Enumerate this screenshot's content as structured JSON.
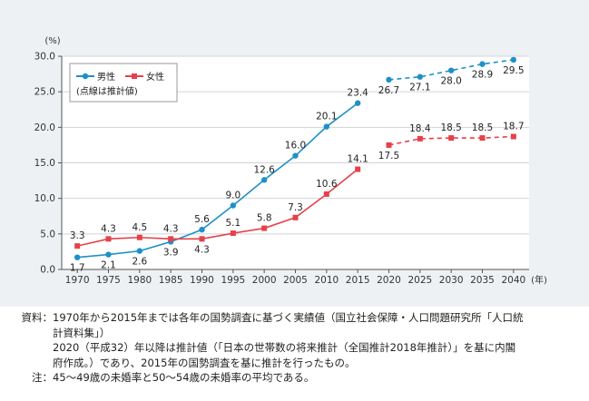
{
  "chart_data": {
    "type": "line",
    "y_unit": "(%)",
    "x_unit": "(年)",
    "ylim": [
      0,
      30
    ],
    "y_ticks": [
      "0.0",
      "5.0",
      "10.0",
      "15.0",
      "20.0",
      "25.0",
      "30.0"
    ],
    "categories": [
      "1970",
      "1975",
      "1980",
      "1985",
      "1990",
      "1995",
      "2000",
      "2005",
      "2010",
      "2015",
      "2020",
      "2025",
      "2030",
      "2035",
      "2040"
    ],
    "legend": {
      "male": "男性",
      "female": "女性",
      "note": "(点線は推計値)"
    },
    "series": [
      {
        "name": "男性",
        "color": "#1e90c8",
        "actual_values": [
          1.7,
          2.1,
          2.6,
          3.9,
          5.6,
          9.0,
          12.6,
          16.0,
          20.1,
          23.4
        ],
        "actual_labels": [
          "1.7",
          "2.1",
          "2.6",
          "3.9",
          "5.6",
          "9.0",
          "12.6",
          "16.0",
          "20.1",
          "23.4"
        ],
        "projected_values": [
          26.7,
          27.1,
          28.0,
          28.9,
          29.5
        ],
        "projected_labels": [
          "26.7",
          "27.1",
          "28.0",
          "28.9",
          "29.5"
        ]
      },
      {
        "name": "女性",
        "color": "#e6404a",
        "actual_values": [
          3.3,
          4.3,
          4.5,
          4.3,
          4.3,
          5.1,
          5.8,
          7.3,
          10.6,
          14.1
        ],
        "actual_labels": [
          "3.3",
          "4.3",
          "4.5",
          "4.3",
          "4.3",
          "5.1",
          "5.8",
          "7.3",
          "10.6",
          "14.1"
        ],
        "projected_values": [
          17.5,
          18.4,
          18.5,
          18.5,
          18.7
        ],
        "projected_labels": [
          "17.5",
          "18.4",
          "18.5",
          "18.5",
          "18.7"
        ]
      }
    ]
  },
  "notes": {
    "source_label": "資料：",
    "source_line1": "1970年から2015年までは各年の国勢調査に基づく実績値（国立社会保障・人口問題研究所「人口統",
    "source_line2": "計資料集」）",
    "source_line3": "2020（平成32）年以降は推計値（「日本の世帯数の将来推計（全国推計2018年推計）」を基に内閣",
    "source_line4": "府作成。）であり、2015年の国勢調査を基に推計を行ったもの。",
    "note_label": "注：",
    "note_text": "45～49歳の未婚率と50～54歳の未婚率の平均である。"
  }
}
